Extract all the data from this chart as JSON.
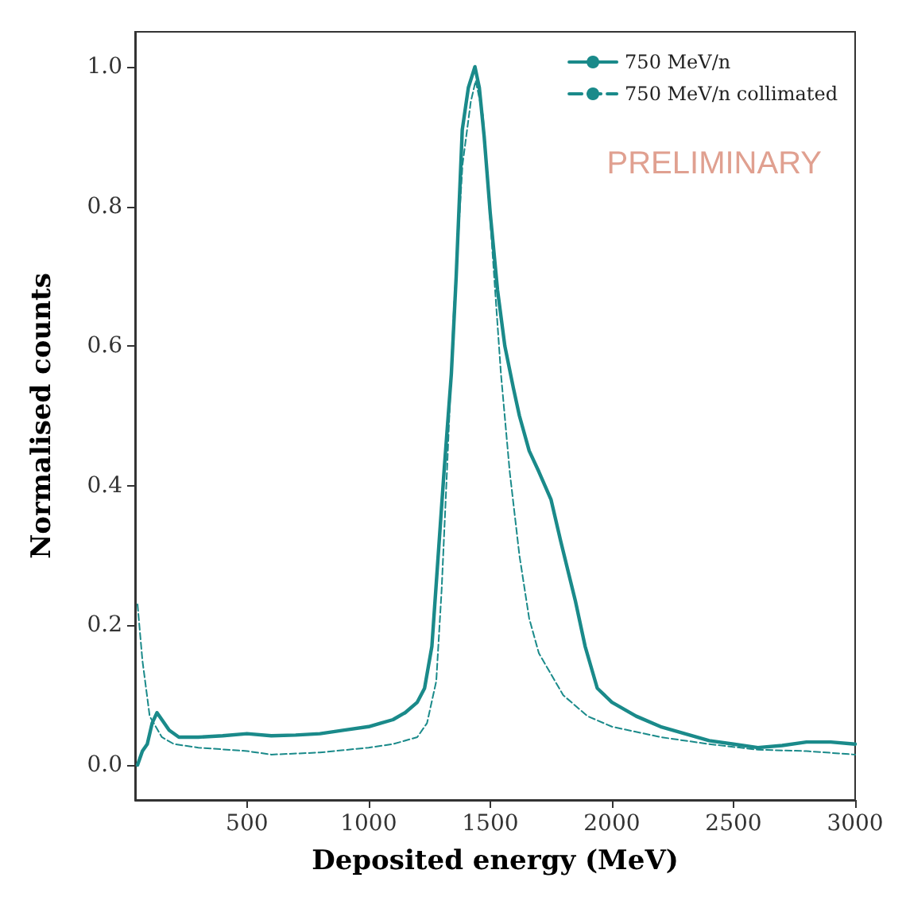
{
  "chart_data": {
    "type": "line",
    "xlabel": "Deposited energy (MeV)",
    "ylabel": "Normalised counts",
    "xlim": [
      40,
      3000
    ],
    "ylim": [
      -0.05,
      1.05
    ],
    "xticks": [
      500,
      1000,
      1500,
      2000,
      2500,
      3000
    ],
    "yticks": [
      {
        "value": 0,
        "label": "0.0"
      },
      0.2,
      0.4,
      0.6,
      0.8,
      {
        "value": 1,
        "label": "1.0"
      }
    ],
    "grid": false,
    "legend": "top right",
    "marker": "none",
    "annotations": [
      "PRELIMINARY"
    ],
    "series": [
      {
        "name": "750 MeV/n",
        "color": "#1a8a8a",
        "line_style": "solid",
        "x": [
          50,
          70,
          90,
          110,
          130,
          150,
          180,
          220,
          300,
          400,
          500,
          600,
          700,
          800,
          900,
          1000,
          1050,
          1100,
          1150,
          1200,
          1230,
          1260,
          1280,
          1310,
          1340,
          1360,
          1385,
          1410,
          1437,
          1455,
          1475,
          1500,
          1530,
          1560,
          1595,
          1620,
          1660,
          1700,
          1750,
          1790,
          1850,
          1890,
          1940,
          2000,
          2100,
          2200,
          2300,
          2400,
          2500,
          2600,
          2700,
          2800,
          2900,
          3000
        ],
        "values": [
          0.0,
          0.02,
          0.03,
          0.06,
          0.075,
          0.065,
          0.05,
          0.04,
          0.04,
          0.042,
          0.045,
          0.042,
          0.043,
          0.045,
          0.05,
          0.055,
          0.06,
          0.065,
          0.075,
          0.09,
          0.11,
          0.17,
          0.27,
          0.42,
          0.56,
          0.7,
          0.91,
          0.97,
          1.0,
          0.97,
          0.9,
          0.79,
          0.68,
          0.6,
          0.54,
          0.5,
          0.45,
          0.42,
          0.38,
          0.32,
          0.235,
          0.17,
          0.11,
          0.09,
          0.07,
          0.055,
          0.045,
          0.035,
          0.03,
          0.025,
          0.028,
          0.033,
          0.033,
          0.03
        ]
      },
      {
        "name": "750 MeV/n collimated",
        "color": "#1a8a8a",
        "line_style": "dashed",
        "x": [
          50,
          70,
          100,
          150,
          200,
          300,
          500,
          600,
          800,
          1000,
          1100,
          1200,
          1240,
          1278,
          1300,
          1322,
          1350,
          1386,
          1420,
          1440,
          1470,
          1500,
          1544,
          1580,
          1620,
          1660,
          1700,
          1800,
          1900,
          2000,
          2200,
          2400,
          2600,
          2800,
          3000
        ],
        "values": [
          0.23,
          0.15,
          0.07,
          0.04,
          0.03,
          0.025,
          0.02,
          0.015,
          0.018,
          0.025,
          0.03,
          0.04,
          0.06,
          0.12,
          0.25,
          0.42,
          0.65,
          0.86,
          0.95,
          0.98,
          0.93,
          0.78,
          0.56,
          0.42,
          0.3,
          0.21,
          0.16,
          0.1,
          0.07,
          0.055,
          0.04,
          0.03,
          0.022,
          0.02,
          0.015
        ]
      }
    ]
  }
}
